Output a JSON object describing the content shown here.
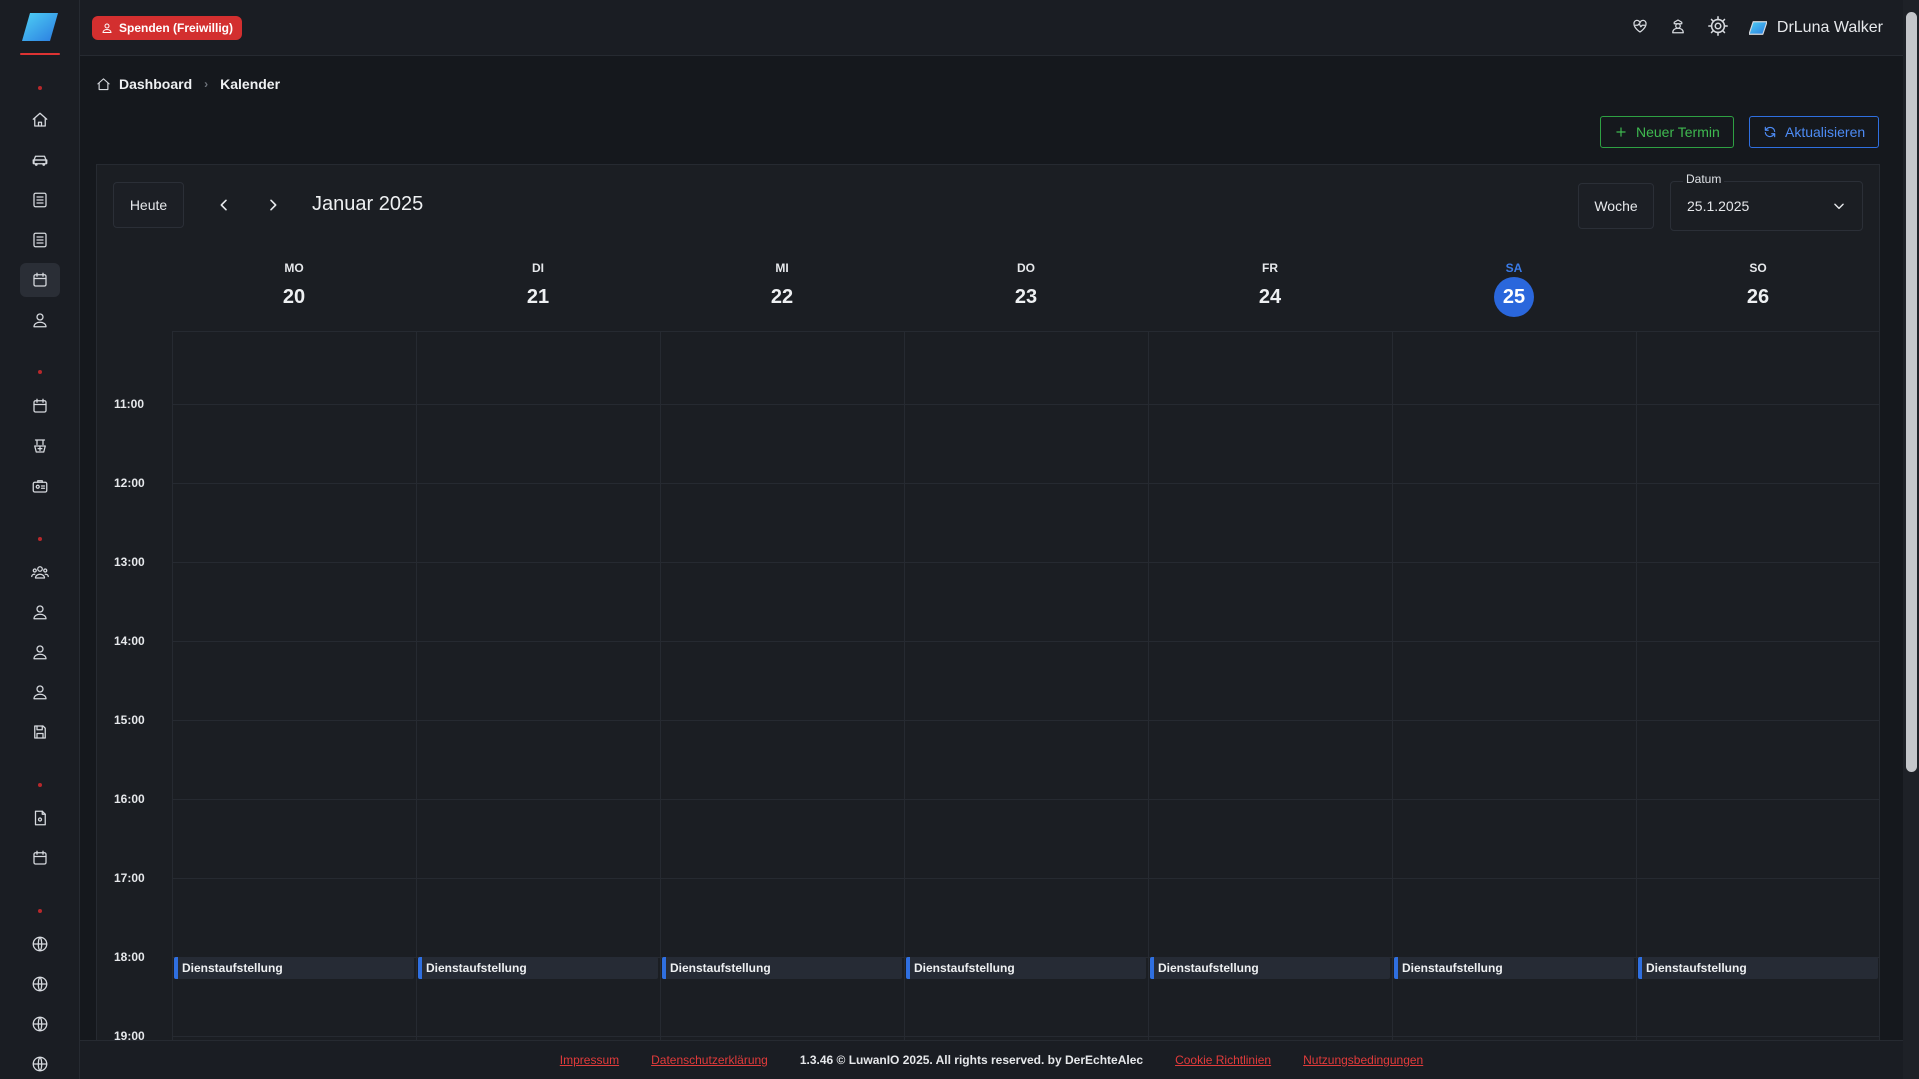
{
  "header": {
    "donate_label": "Spenden (Freiwillig)",
    "user_name": "DrLuna Walker"
  },
  "breadcrumb": {
    "home": "Dashboard",
    "current": "Kalender"
  },
  "actions": {
    "new_event": "Neuer Termin",
    "refresh": "Aktualisieren"
  },
  "calendar": {
    "today_label": "Heute",
    "title": "Januar 2025",
    "view_label": "Woche",
    "date_label": "Datum",
    "date_value": "25.1.2025",
    "days": [
      {
        "name": "MO",
        "num": "20",
        "today": false
      },
      {
        "name": "DI",
        "num": "21",
        "today": false
      },
      {
        "name": "MI",
        "num": "22",
        "today": false
      },
      {
        "name": "DO",
        "num": "23",
        "today": false
      },
      {
        "name": "FR",
        "num": "24",
        "today": false
      },
      {
        "name": "SA",
        "num": "25",
        "today": true
      },
      {
        "name": "SO",
        "num": "26",
        "today": false
      }
    ],
    "hours": [
      "11:00",
      "12:00",
      "13:00",
      "14:00",
      "15:00",
      "16:00",
      "17:00",
      "18:00",
      "19:00"
    ],
    "events": [
      {
        "day": 0,
        "title": "Dienstaufstellung",
        "start": "18:00"
      },
      {
        "day": 1,
        "title": "Dienstaufstellung",
        "start": "18:00"
      },
      {
        "day": 2,
        "title": "Dienstaufstellung",
        "start": "18:00"
      },
      {
        "day": 3,
        "title": "Dienstaufstellung",
        "start": "18:00"
      },
      {
        "day": 4,
        "title": "Dienstaufstellung",
        "start": "18:00"
      },
      {
        "day": 5,
        "title": "Dienstaufstellung",
        "start": "18:00"
      },
      {
        "day": 6,
        "title": "Dienstaufstellung",
        "start": "18:00"
      }
    ],
    "accent_color": "#2a67dc"
  },
  "footer": {
    "impressum": "Impressum",
    "privacy": "Datenschutzerklärung",
    "copyright": "1.3.46 © LuwanIO 2025. All rights reserved. by DerEchteAlec",
    "cookies": "Cookie Richtlinien",
    "terms": "Nutzungsbedingungen"
  },
  "sidebar": {
    "icons": [
      "home-icon",
      "car-icon",
      "list-icon",
      "list-icon",
      "calendar-icon",
      "person-icon",
      "calendar-icon",
      "medical-icon",
      "briefcase-icon",
      "group-icon",
      "person-icon",
      "person-icon",
      "person-icon",
      "save-icon",
      "document-icon",
      "calendar-icon",
      "globe-icon",
      "globe-icon",
      "globe-icon",
      "globe-icon"
    ]
  }
}
